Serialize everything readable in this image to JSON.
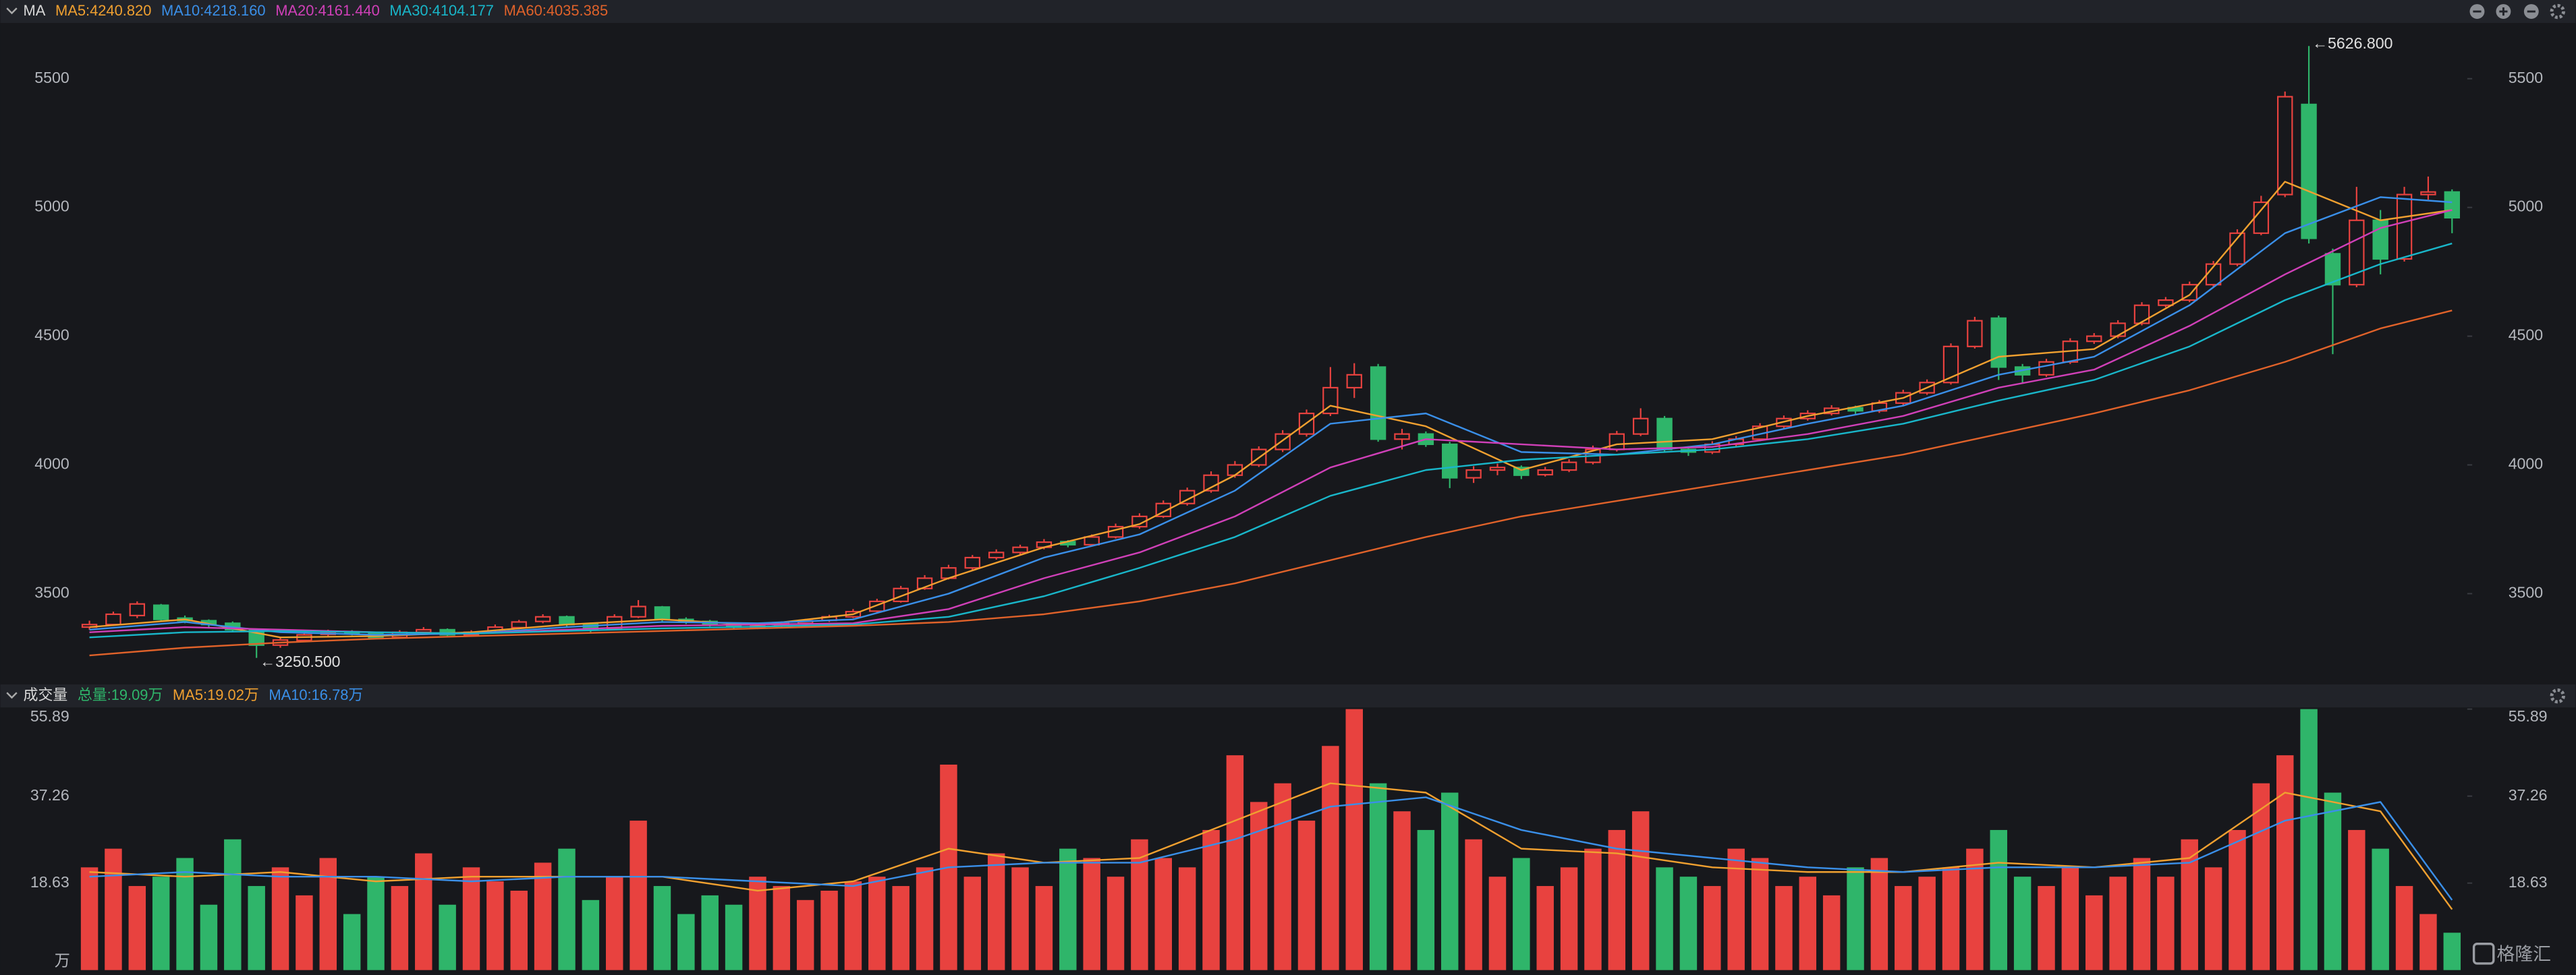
{
  "chart_data": [
    {
      "type": "candlestick",
      "title": "MA",
      "ohlc": [
        [
          3370,
          3395,
          3360,
          3380
        ],
        [
          3380,
          3430,
          3375,
          3420
        ],
        [
          3415,
          3470,
          3405,
          3460
        ],
        [
          3455,
          3460,
          3395,
          3400
        ],
        [
          3405,
          3415,
          3385,
          3395
        ],
        [
          3395,
          3400,
          3370,
          3380
        ],
        [
          3385,
          3392,
          3350,
          3360
        ],
        [
          3360,
          3365,
          3250.5,
          3300
        ],
        [
          3300,
          3330,
          3290,
          3320
        ],
        [
          3318,
          3350,
          3312,
          3340
        ],
        [
          3342,
          3360,
          3335,
          3350
        ],
        [
          3352,
          3358,
          3338,
          3345
        ],
        [
          3345,
          3350,
          3322,
          3330
        ],
        [
          3330,
          3358,
          3325,
          3350
        ],
        [
          3350,
          3370,
          3344,
          3360
        ],
        [
          3360,
          3365,
          3332,
          3340
        ],
        [
          3340,
          3358,
          3334,
          3350
        ],
        [
          3350,
          3380,
          3346,
          3370
        ],
        [
          3368,
          3398,
          3362,
          3390
        ],
        [
          3392,
          3420,
          3385,
          3410
        ],
        [
          3410,
          3415,
          3370,
          3380
        ],
        [
          3382,
          3388,
          3350,
          3360
        ],
        [
          3362,
          3420,
          3358,
          3410
        ],
        [
          3410,
          3475,
          3405,
          3450
        ],
        [
          3448,
          3452,
          3392,
          3400
        ],
        [
          3400,
          3408,
          3382,
          3390
        ],
        [
          3392,
          3398,
          3372,
          3380
        ],
        [
          3382,
          3386,
          3362,
          3370
        ],
        [
          3368,
          3385,
          3362,
          3375
        ],
        [
          3376,
          3392,
          3370,
          3385
        ],
        [
          3385,
          3402,
          3380,
          3395
        ],
        [
          3396,
          3418,
          3390,
          3410
        ],
        [
          3410,
          3440,
          3405,
          3430
        ],
        [
          3432,
          3480,
          3428,
          3470
        ],
        [
          3470,
          3530,
          3465,
          3520
        ],
        [
          3520,
          3572,
          3515,
          3560
        ],
        [
          3560,
          3612,
          3555,
          3600
        ],
        [
          3600,
          3650,
          3592,
          3640
        ],
        [
          3640,
          3672,
          3632,
          3660
        ],
        [
          3660,
          3690,
          3652,
          3680
        ],
        [
          3680,
          3712,
          3672,
          3700
        ],
        [
          3702,
          3708,
          3680,
          3690
        ],
        [
          3690,
          3730,
          3684,
          3720
        ],
        [
          3720,
          3772,
          3714,
          3760
        ],
        [
          3760,
          3812,
          3752,
          3800
        ],
        [
          3800,
          3862,
          3794,
          3850
        ],
        [
          3850,
          3912,
          3842,
          3900
        ],
        [
          3900,
          3975,
          3892,
          3960
        ],
        [
          3960,
          4015,
          3950,
          4000
        ],
        [
          4000,
          4072,
          3992,
          4060
        ],
        [
          4060,
          4135,
          4050,
          4120
        ],
        [
          4120,
          4215,
          4110,
          4200
        ],
        [
          4200,
          4380,
          4190,
          4300
        ],
        [
          4300,
          4395,
          4260,
          4350
        ],
        [
          4380,
          4392,
          4090,
          4100
        ],
        [
          4100,
          4140,
          4060,
          4120
        ],
        [
          4120,
          4130,
          4070,
          4080
        ],
        [
          4080,
          4090,
          3910,
          3950
        ],
        [
          3950,
          3995,
          3930,
          3980
        ],
        [
          3980,
          4005,
          3960,
          3990
        ],
        [
          3990,
          3998,
          3945,
          3960
        ],
        [
          3962,
          3992,
          3955,
          3980
        ],
        [
          3980,
          4022,
          3972,
          4010
        ],
        [
          4010,
          4075,
          4002,
          4060
        ],
        [
          4060,
          4132,
          4052,
          4120
        ],
        [
          4120,
          4220,
          4112,
          4180
        ],
        [
          4180,
          4190,
          4050,
          4060
        ],
        [
          4060,
          4070,
          4035,
          4050
        ],
        [
          4050,
          4092,
          4042,
          4080
        ],
        [
          4080,
          4112,
          4072,
          4100
        ],
        [
          4100,
          4162,
          4092,
          4150
        ],
        [
          4150,
          4192,
          4142,
          4180
        ],
        [
          4180,
          4212,
          4172,
          4200
        ],
        [
          4200,
          4232,
          4192,
          4220
        ],
        [
          4222,
          4230,
          4198,
          4210
        ],
        [
          4210,
          4252,
          4202,
          4240
        ],
        [
          4240,
          4292,
          4232,
          4280
        ],
        [
          4280,
          4332,
          4272,
          4320
        ],
        [
          4320,
          4472,
          4312,
          4460
        ],
        [
          4460,
          4575,
          4452,
          4560
        ],
        [
          4570,
          4580,
          4330,
          4380
        ],
        [
          4380,
          4392,
          4320,
          4350
        ],
        [
          4350,
          4412,
          4342,
          4400
        ],
        [
          4400,
          4492,
          4392,
          4480
        ],
        [
          4480,
          4512,
          4470,
          4500
        ],
        [
          4500,
          4562,
          4492,
          4550
        ],
        [
          4550,
          4632,
          4542,
          4620
        ],
        [
          4620,
          4652,
          4612,
          4640
        ],
        [
          4640,
          4712,
          4632,
          4700
        ],
        [
          4700,
          4792,
          4692,
          4780
        ],
        [
          4780,
          4915,
          4772,
          4900
        ],
        [
          4900,
          5045,
          4892,
          5020
        ],
        [
          5050,
          5450,
          5040,
          5430
        ],
        [
          5400,
          5626.8,
          4860,
          4880
        ],
        [
          4820,
          4840,
          4430,
          4700
        ],
        [
          4700,
          5080,
          4690,
          4950
        ],
        [
          4950,
          4990,
          4740,
          4800
        ],
        [
          4800,
          5080,
          4790,
          5050
        ],
        [
          5050,
          5120,
          5030,
          5060
        ],
        [
          5060,
          5070,
          4900,
          4960
        ]
      ],
      "up_color": "#e8423f",
      "down_color": "#2fb56a",
      "max_label": "←5626.800",
      "min_label": "←3250.500",
      "ylim": [
        3160,
        5710
      ],
      "yticks": [
        3500,
        4000,
        4500,
        5000,
        5500
      ],
      "ma_x": [
        0,
        4,
        8,
        12,
        16,
        20,
        24,
        28,
        32,
        36,
        40,
        44,
        48,
        52,
        56,
        60,
        64,
        68,
        72,
        76,
        80,
        84,
        88,
        92,
        96,
        99
      ],
      "series": [
        {
          "name": "MA5:4240.820",
          "color": "#f0a030",
          "values": [
            3370,
            3400,
            3330,
            3335,
            3350,
            3380,
            3400,
            3378,
            3420,
            3560,
            3680,
            3770,
            3960,
            4230,
            4150,
            3980,
            4080,
            4100,
            4190,
            4260,
            4420,
            4450,
            4660,
            5100,
            4950,
            4990
          ]
        },
        {
          "name": "MA10:4218.160",
          "color": "#3a8fe8",
          "values": [
            3360,
            3390,
            3350,
            3340,
            3345,
            3370,
            3390,
            3385,
            3400,
            3500,
            3640,
            3730,
            3900,
            4160,
            4200,
            4050,
            4040,
            4080,
            4160,
            4230,
            4350,
            4420,
            4620,
            4900,
            5040,
            5020
          ]
        },
        {
          "name": "MA20:4161.440",
          "color": "#d040b8",
          "values": [
            3350,
            3370,
            3360,
            3350,
            3345,
            3360,
            3375,
            3380,
            3385,
            3440,
            3560,
            3660,
            3800,
            3990,
            4100,
            4080,
            4060,
            4070,
            4120,
            4190,
            4300,
            4370,
            4540,
            4740,
            4920,
            4990
          ]
        },
        {
          "name": "MA30:4104.177",
          "color": "#19b6c9",
          "values": [
            3330,
            3350,
            3355,
            3350,
            3345,
            3355,
            3365,
            3372,
            3380,
            3410,
            3490,
            3600,
            3720,
            3880,
            3980,
            4020,
            4040,
            4060,
            4100,
            4160,
            4250,
            4330,
            4460,
            4640,
            4780,
            4860
          ]
        },
        {
          "name": "MA60:4035.385",
          "color": "#e0622a",
          "values": [
            3260,
            3290,
            3310,
            3325,
            3335,
            3345,
            3355,
            3365,
            3375,
            3390,
            3420,
            3470,
            3540,
            3630,
            3720,
            3800,
            3860,
            3920,
            3980,
            4040,
            4120,
            4200,
            4290,
            4400,
            4530,
            4600
          ]
        }
      ]
    },
    {
      "type": "bar",
      "title": "成交量",
      "subtitle": "总量:19.09万",
      "subtitle_color": "#2fb56a",
      "unit": "万",
      "values": [
        22,
        26,
        18,
        20,
        24,
        14,
        28,
        18,
        22,
        16,
        24,
        12,
        20,
        18,
        25,
        14,
        22,
        19,
        17,
        23,
        26,
        15,
        20,
        32,
        18,
        12,
        16,
        14,
        20,
        18,
        15,
        17,
        19,
        20,
        18,
        22,
        44,
        20,
        25,
        22,
        18,
        26,
        24,
        20,
        28,
        24,
        22,
        30,
        46,
        36,
        40,
        32,
        48,
        55.89,
        40,
        34,
        30,
        38,
        28,
        20,
        24,
        18,
        22,
        26,
        30,
        34,
        22,
        20,
        18,
        26,
        24,
        18,
        20,
        16,
        22,
        24,
        18,
        20,
        22,
        26,
        30,
        20,
        18,
        22,
        16,
        20,
        24,
        20,
        28,
        22,
        30,
        40,
        46,
        55.89,
        38,
        30,
        26,
        18,
        12,
        8
      ],
      "ylim": [
        0,
        55.89
      ],
      "yticks": [
        18.63,
        37.26,
        55.89
      ],
      "ma_x": [
        0,
        4,
        8,
        12,
        16,
        20,
        24,
        28,
        32,
        36,
        40,
        44,
        48,
        52,
        56,
        60,
        64,
        68,
        72,
        76,
        80,
        84,
        88,
        92,
        96,
        99
      ],
      "series": [
        {
          "name": "MA5:19.02万",
          "color": "#f0a030",
          "values": [
            21,
            20,
            21,
            19,
            20,
            20,
            20,
            17,
            19,
            26,
            23,
            24,
            32,
            40,
            38,
            26,
            25,
            22,
            21,
            21,
            23,
            22,
            24,
            38,
            34,
            13
          ]
        },
        {
          "name": "MA10:16.78万",
          "color": "#3a8fe8",
          "values": [
            20,
            21,
            20,
            20,
            19,
            20,
            20,
            19,
            18,
            22,
            23,
            23,
            28,
            35,
            37,
            30,
            26,
            24,
            22,
            21,
            22,
            22,
            23,
            32,
            36,
            15
          ]
        }
      ]
    }
  ],
  "watermark": "格隆汇"
}
